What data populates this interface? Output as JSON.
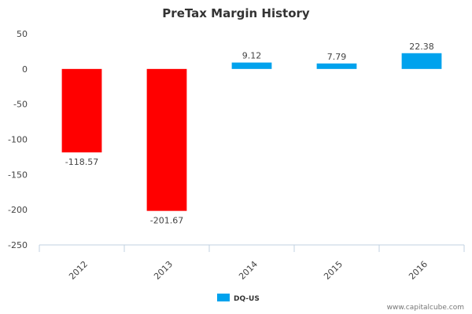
{
  "chart_data": {
    "type": "bar",
    "title": "PreTax Margin History",
    "categories": [
      "2012",
      "2013",
      "2014",
      "2015",
      "2016"
    ],
    "series": [
      {
        "name": "DQ-US",
        "values": [
          -118.57,
          -201.67,
          9.12,
          7.79,
          22.38
        ]
      }
    ],
    "data_labels": [
      "-118.57",
      "-201.67",
      "9.12",
      "7.79",
      "22.38"
    ],
    "ylim": [
      -250,
      50
    ],
    "yticks": [
      50,
      0,
      -50,
      -100,
      -150,
      -200,
      -250
    ],
    "xlabel": "",
    "ylabel": "",
    "legend_position": "bottom-center",
    "negative_color": "#ff0000",
    "positive_color": "#00a2ed"
  },
  "credit": "www.capitalcube.com"
}
